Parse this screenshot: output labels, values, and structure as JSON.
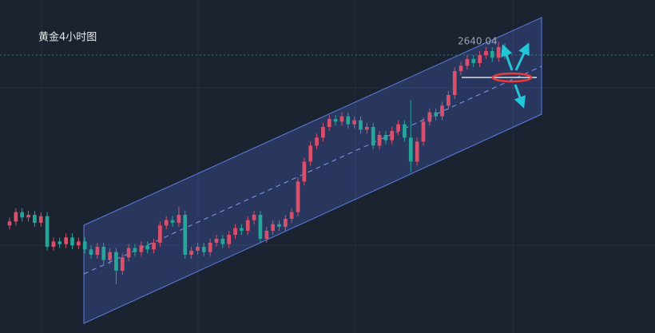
{
  "chart_data": {
    "type": "candlestick",
    "title": "黄金4小时图",
    "price_line": 2640.04,
    "ylim": [
      2431.2,
      2681.4
    ],
    "up_color": "#d9506a",
    "down_color": "#26a69a",
    "open": [
      2512,
      2515,
      2522,
      2518,
      2520,
      2514,
      2519,
      2496,
      2500,
      2498,
      2503,
      2497,
      2500,
      2494,
      2490,
      2496,
      2486,
      2492,
      2478,
      2488,
      2495,
      2492,
      2497,
      2494,
      2499,
      2512,
      2516,
      2514,
      2520,
      2490,
      2493,
      2496,
      2492,
      2499,
      2502,
      2498,
      2505,
      2510,
      2508,
      2516,
      2520,
      2502,
      2508,
      2513,
      2511,
      2517,
      2522,
      2545,
      2560,
      2572,
      2578,
      2586,
      2592,
      2590,
      2594,
      2588,
      2591,
      2584,
      2586,
      2572,
      2580,
      2576,
      2583,
      2588,
      2578,
      2560,
      2575,
      2590,
      2597,
      2594,
      2602,
      2610,
      2628,
      2632,
      2637,
      2634,
      2640,
      2643,
      2638,
      2646
    ],
    "high": [
      2518,
      2525,
      2525,
      2523,
      2523,
      2522,
      2522,
      2503,
      2503,
      2506,
      2506,
      2503,
      2503,
      2497,
      2499,
      2499,
      2495,
      2495,
      2491,
      2498,
      2498,
      2500,
      2500,
      2502,
      2515,
      2519,
      2519,
      2526,
      2523,
      2496,
      2499,
      2499,
      2502,
      2505,
      2505,
      2508,
      2513,
      2513,
      2519,
      2523,
      2523,
      2511,
      2516,
      2516,
      2520,
      2525,
      2548,
      2563,
      2575,
      2581,
      2589,
      2595,
      2595,
      2597,
      2597,
      2594,
      2594,
      2589,
      2589,
      2583,
      2583,
      2586,
      2591,
      2591,
      2606,
      2578,
      2593,
      2600,
      2600,
      2605,
      2613,
      2631,
      2635,
      2640,
      2640,
      2643,
      2646,
      2646,
      2650,
      2649
    ],
    "low": [
      2509,
      2512,
      2515,
      2515,
      2511,
      2511,
      2493,
      2493,
      2495,
      2495,
      2494,
      2494,
      2491,
      2487,
      2487,
      2483,
      2483,
      2468,
      2475,
      2485,
      2489,
      2489,
      2491,
      2491,
      2496,
      2509,
      2511,
      2511,
      2487,
      2487,
      2490,
      2489,
      2489,
      2496,
      2495,
      2495,
      2502,
      2505,
      2505,
      2513,
      2499,
      2499,
      2505,
      2508,
      2508,
      2514,
      2519,
      2542,
      2557,
      2569,
      2575,
      2583,
      2587,
      2587,
      2585,
      2585,
      2581,
      2581,
      2569,
      2569,
      2573,
      2573,
      2580,
      2575,
      2552,
      2557,
      2572,
      2587,
      2591,
      2591,
      2599,
      2607,
      2625,
      2629,
      2631,
      2631,
      2637,
      2635,
      2635,
      2637
    ],
    "close": [
      2515,
      2522,
      2518,
      2520,
      2514,
      2519,
      2496,
      2500,
      2498,
      2503,
      2497,
      2500,
      2494,
      2490,
      2496,
      2486,
      2492,
      2478,
      2488,
      2495,
      2492,
      2497,
      2494,
      2499,
      2512,
      2516,
      2514,
      2520,
      2490,
      2493,
      2496,
      2492,
      2499,
      2502,
      2498,
      2505,
      2510,
      2508,
      2516,
      2520,
      2502,
      2508,
      2513,
      2511,
      2517,
      2522,
      2545,
      2560,
      2572,
      2578,
      2586,
      2592,
      2590,
      2594,
      2588,
      2591,
      2584,
      2586,
      2572,
      2580,
      2576,
      2583,
      2588,
      2578,
      2560,
      2575,
      2590,
      2597,
      2594,
      2602,
      2610,
      2628,
      2632,
      2637,
      2634,
      2640,
      2643,
      2638,
      2646,
      2640.04
    ]
  }
}
